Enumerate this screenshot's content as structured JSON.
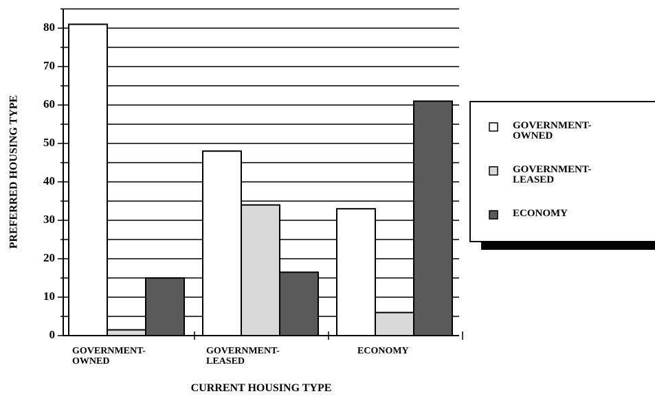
{
  "chart_data": {
    "type": "bar",
    "x_label": "CURRENT HOUSING TYPE",
    "y_label": "PREFERRED HOUSING TYPE",
    "categories": [
      "GOVERNMENT-OWNED",
      "GOVERNMENT-LEASED",
      "ECONOMY"
    ],
    "series": [
      {
        "name": "GOVERNMENT-OWNED",
        "color": "#ffffff",
        "values": [
          81,
          48,
          33
        ]
      },
      {
        "name": "GOVERNMENT-LEASED",
        "color": "#d9d9d9",
        "values": [
          1.5,
          34,
          6
        ]
      },
      {
        "name": "ECONOMY",
        "color": "#5a5a5a",
        "values": [
          15,
          16.5,
          61
        ]
      }
    ],
    "ylim": [
      0,
      85
    ],
    "yticks": [
      0,
      10,
      20,
      30,
      40,
      50,
      60,
      70,
      80
    ],
    "yminorticks": [
      5,
      15,
      25,
      35,
      45,
      55,
      65,
      75,
      85
    ],
    "grid": true,
    "legend": "right"
  }
}
